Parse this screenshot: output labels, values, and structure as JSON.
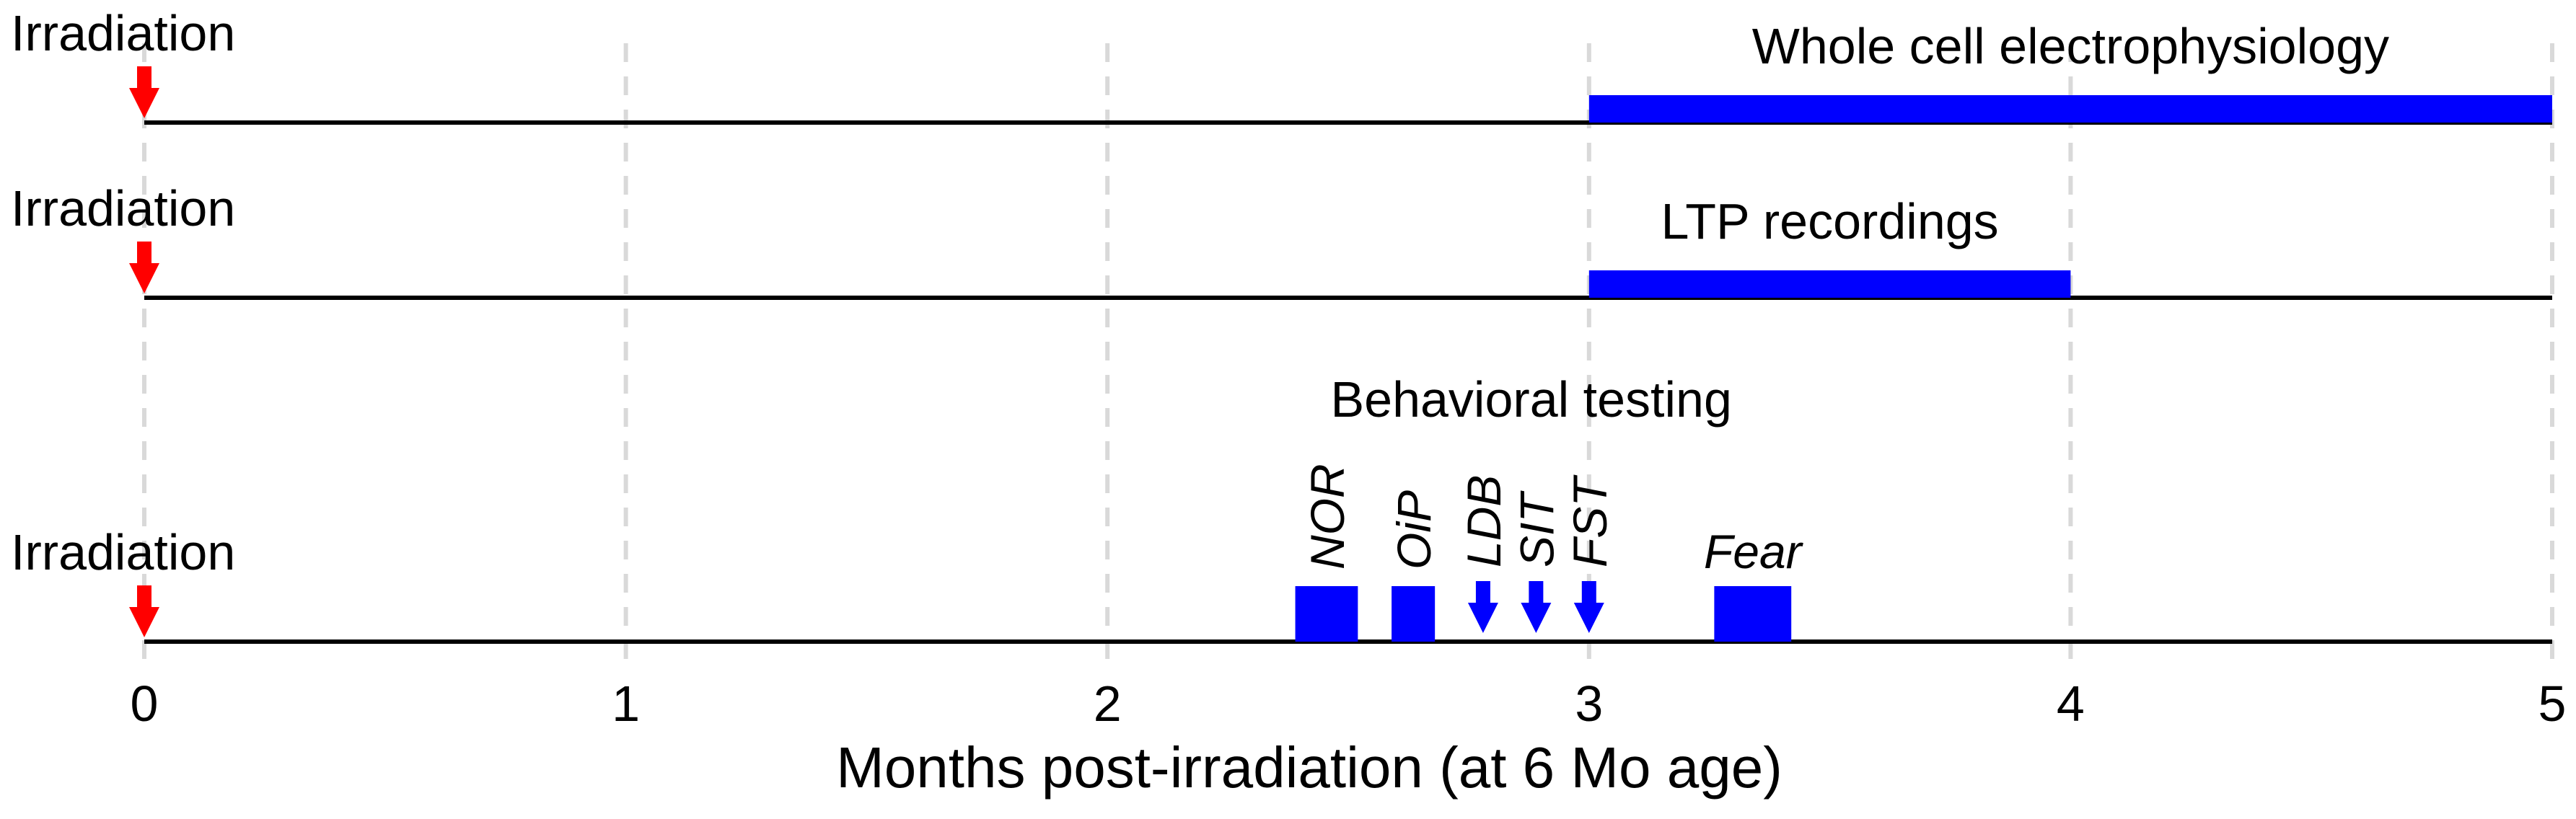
{
  "chart_data": {
    "type": "timeline",
    "xlabel": "Months post-irradiation (at 6 Mo age)",
    "xlim": [
      0,
      5
    ],
    "xticks": [
      0,
      1,
      2,
      3,
      4,
      5
    ],
    "grid": true,
    "colors": {
      "irradiation": "#ff0000",
      "protocol": "#0000ff",
      "line": "#000000",
      "grid": "#d9d9d9"
    },
    "timelines": [
      {
        "name": "electrophysiology",
        "irradiation_label": "Irradiation",
        "irradiation_month": 0,
        "bars": [
          {
            "label": "Whole cell electrophysiology",
            "start": 3,
            "end": 5
          }
        ]
      },
      {
        "name": "ltp",
        "irradiation_label": "Irradiation",
        "irradiation_month": 0,
        "bars": [
          {
            "label": "LTP recordings",
            "start": 3,
            "end": 4
          }
        ]
      },
      {
        "name": "behavior",
        "irradiation_label": "Irradiation",
        "irradiation_month": 0,
        "group_label": "Behavioral testing",
        "tests": [
          {
            "label": "NOR",
            "kind": "block",
            "start": 2.39,
            "end": 2.52
          },
          {
            "label": "OiP",
            "kind": "block",
            "start": 2.59,
            "end": 2.68
          },
          {
            "label": "LDB",
            "kind": "arrow",
            "month": 2.78
          },
          {
            "label": "SIT",
            "kind": "arrow",
            "month": 2.89
          },
          {
            "label": "FST",
            "kind": "arrow",
            "month": 3.0
          },
          {
            "label": "Fear",
            "kind": "block",
            "start": 3.26,
            "end": 3.42
          }
        ]
      }
    ]
  }
}
